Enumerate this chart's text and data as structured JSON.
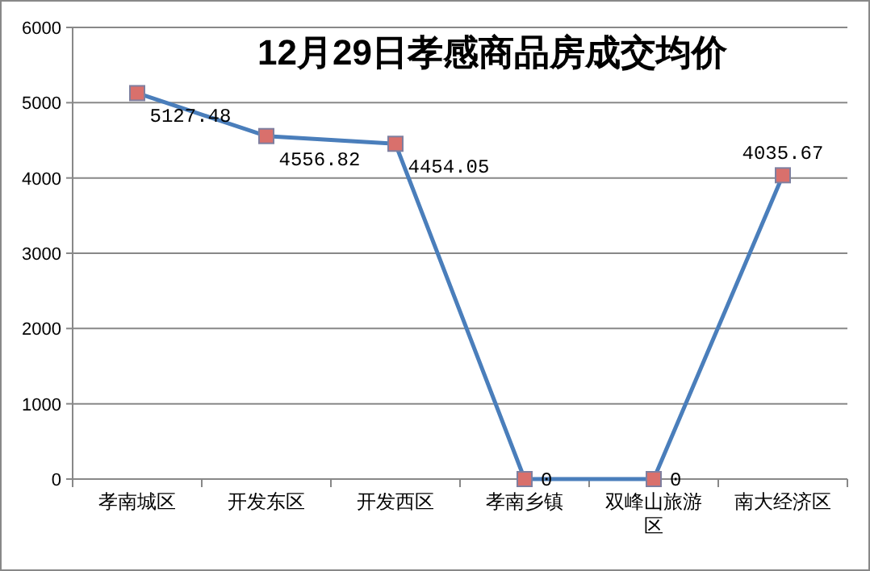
{
  "chart_data": {
    "type": "line",
    "title": "12月29日孝感商品房成交均价",
    "categories": [
      "孝南城区",
      "开发东区",
      "开发西区",
      "孝南乡镇",
      "双峰山旅游区",
      "南大经济区"
    ],
    "values": [
      5127.48,
      4556.82,
      4454.05,
      0,
      0,
      4035.67
    ],
    "color": "#4a7ebb",
    "ylim": [
      0,
      6000
    ],
    "yticks": [
      0,
      1000,
      2000,
      3000,
      4000,
      5000,
      6000
    ],
    "grid": "y",
    "marker": "square",
    "data_labels": true
  }
}
